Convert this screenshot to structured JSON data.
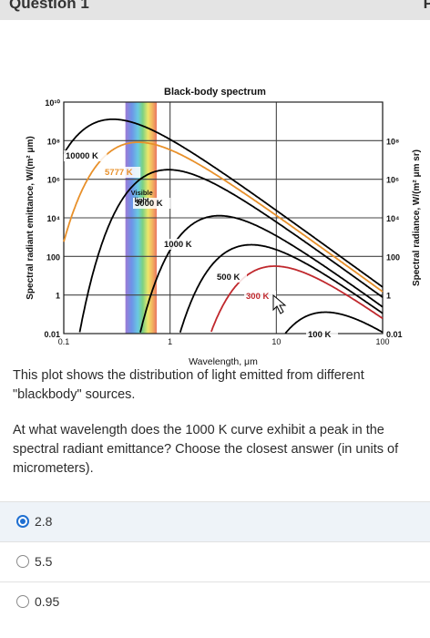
{
  "header": {
    "title": "Question 1",
    "right_mark": "P"
  },
  "question": {
    "intro": "This plot shows the distribution of light emitted from different \"blackbody\" sources.",
    "prompt": "At what wavelength does the 1000 K curve exhibit a peak in the spectral radiant emittance? Choose the closest answer (in units of micrometers)."
  },
  "options": [
    {
      "label": "2.8",
      "selected": true
    },
    {
      "label": "5.5",
      "selected": false
    },
    {
      "label": "0.95",
      "selected": false
    }
  ],
  "chart_data": {
    "type": "line",
    "title": "Black-body spectrum",
    "xlabel": "Wavelength, μm",
    "ylabel": "Spectral radiant emittance, W/(m² μm)",
    "ylabel_right": "Spectral radiance, W/(m² μm sr)",
    "x_scale": "log",
    "y_scale": "log",
    "xlim": [
      0.1,
      100
    ],
    "ylim": [
      0.01,
      10000000000.0
    ],
    "x_ticks": [
      "0.1",
      "1",
      "10",
      "100"
    ],
    "y_ticks_left": [
      "0.01",
      "1",
      "100",
      "10⁴",
      "10⁶",
      "10⁸",
      "10¹⁰"
    ],
    "y_ticks_right": [
      "0.01",
      "1",
      "100",
      "10⁴",
      "10⁶",
      "10⁸"
    ],
    "visible_band_label": "Visible light",
    "visible_band_um": [
      0.38,
      0.75
    ],
    "grid": true,
    "series": [
      {
        "name": "10000 K",
        "T": 10000,
        "color": "#000000"
      },
      {
        "name": "5777 K",
        "T": 5777,
        "color": "#e8902a"
      },
      {
        "name": "3000 K",
        "T": 3000,
        "color": "#000000"
      },
      {
        "name": "1000 K",
        "T": 1000,
        "color": "#000000"
      },
      {
        "name": "500 K",
        "T": 500,
        "color": "#000000"
      },
      {
        "name": "300 K",
        "T": 300,
        "color": "#c0282d"
      },
      {
        "name": "100 K",
        "T": 100,
        "color": "#000000"
      }
    ]
  }
}
